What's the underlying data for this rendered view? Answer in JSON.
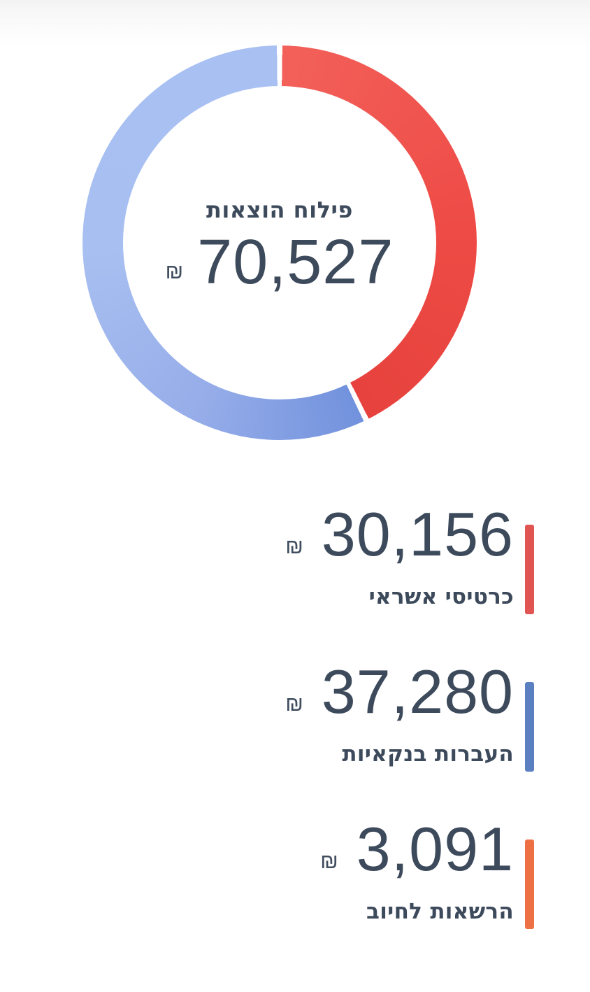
{
  "donut": {
    "title": "פילוח הוצאות",
    "total_display": "70,527",
    "currency": "₪"
  },
  "legend": {
    "items": [
      {
        "value_display": "30,156",
        "currency": "₪",
        "label": "כרטיסי אשראי",
        "color": "#e05452"
      },
      {
        "value_display": "37,280",
        "currency": "₪",
        "label": "העברות בנקאיות",
        "color": "#5b80c1"
      },
      {
        "value_display": "3,091",
        "currency": "₪",
        "label": "הרשאות לחיוב",
        "color": "#ed7145"
      }
    ]
  },
  "chart_data": {
    "type": "pie",
    "donut": true,
    "title": "פילוח הוצאות",
    "currency": "₪",
    "total": 70527,
    "total_display": "70,527",
    "segments": [
      {
        "label": "כרטיסי אשראי",
        "value": 30156,
        "display": "30,156",
        "legend_color": "#e05452",
        "drawn_in_donut": true
      },
      {
        "label": "העברות בנקאיות",
        "value": 37280,
        "display": "37,280",
        "legend_color": "#5b80c1",
        "drawn_in_donut": true
      },
      {
        "label": "הרשאות לחיוב",
        "value": 3091,
        "display": "3,091",
        "legend_color": "#ed7145",
        "drawn_in_donut": false
      }
    ],
    "legend_position": "below, right-aligned",
    "start_angle_deg": 0,
    "direction": "clockwise"
  },
  "donut_render": {
    "gap_deg": 1.6,
    "text_color": "#3d4a5b",
    "hole_color": "#ffffff",
    "arcs": [
      {
        "segments": [
          0
        ],
        "stops": [
          [
            0,
            "#f3605a"
          ],
          [
            0.55,
            "#ee4b46"
          ],
          [
            1,
            "#e7423d"
          ]
        ]
      },
      {
        "segments": [
          1,
          2
        ],
        "stops": [
          [
            0,
            "#7292dd"
          ],
          [
            0.25,
            "#96ade9"
          ],
          [
            0.55,
            "#a8bff1"
          ],
          [
            1,
            "#a9c0f2"
          ]
        ]
      }
    ]
  }
}
